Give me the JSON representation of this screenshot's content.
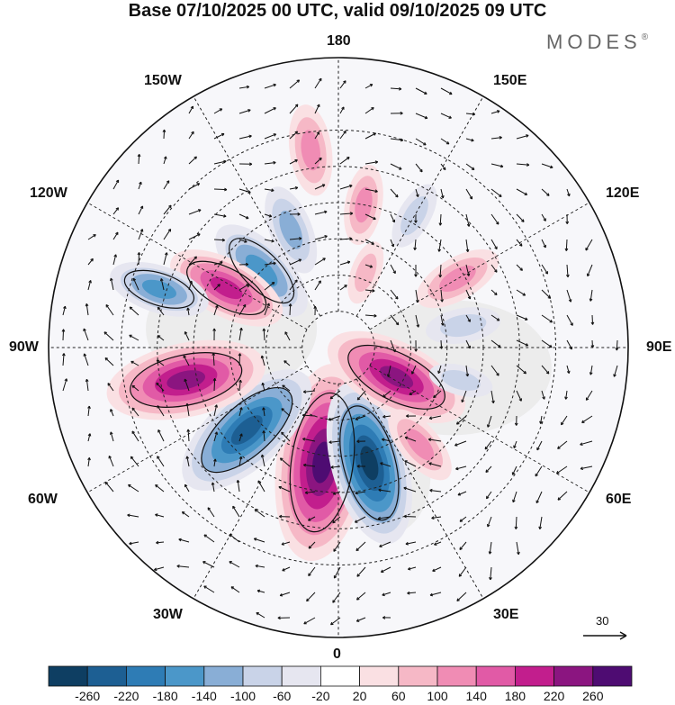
{
  "title": "Base 07/10/2025 00 UTC, valid 09/10/2025 09 UTC",
  "brand": "MODES",
  "brand_mark": "®",
  "longitude_labels": {
    "top": "180",
    "bottom": "0",
    "left": "90W",
    "right": "90E",
    "upper_left_1": "150W",
    "upper_left_2": "120W",
    "lower_left_1": "60W",
    "lower_left_2": "30W",
    "upper_right_1": "150E",
    "upper_right_2": "120E",
    "lower_right_1": "60E",
    "lower_right_2": "30E"
  },
  "wind_reference_vector": "30",
  "colors": {
    "neg_strong": "#0e3e62",
    "neg_mid": "#4b97c9",
    "neg_light": "#c9d3e8",
    "neutral": "#ffffff",
    "pos_light": "#f6cdd3",
    "pos_mid": "#e56aa8",
    "pos_strong": "#4e0c72",
    "land": "#e8e8e8"
  },
  "colorbar": {
    "colors": [
      "#0e3e62",
      "#1d5f93",
      "#2e7cb5",
      "#4b97c9",
      "#89aed6",
      "#c9d3e8",
      "#e6e6f0",
      "#ffffff",
      "#fae0e3",
      "#f6b8c6",
      "#f08cb4",
      "#e15aa6",
      "#c21e8d",
      "#8b1580",
      "#4e0c72"
    ],
    "tick_labels": [
      "-260",
      "-220",
      "-180",
      "-140",
      "-100",
      "-60",
      "-20",
      "20",
      "60",
      "100",
      "140",
      "180",
      "220",
      "260"
    ]
  },
  "anomaly_blobs": [
    {
      "lon": -8,
      "lat": 58,
      "value": 290
    },
    {
      "lon": 15,
      "lat": 57,
      "value": -230
    },
    {
      "lon": -48,
      "lat": 56,
      "value": -220
    },
    {
      "lon": -78,
      "lat": 47,
      "value": 220
    },
    {
      "lon": 63,
      "lat": 72,
      "value": 200
    },
    {
      "lon": -135,
      "lat": 60,
      "value": -140
    },
    {
      "lon": -118,
      "lat": 55,
      "value": 150
    },
    {
      "lon": -158,
      "lat": 55,
      "value": -90
    },
    {
      "lon": -108,
      "lat": 38,
      "value": -110
    },
    {
      "lon": 120,
      "lat": 52,
      "value": 90
    },
    {
      "lon": 100,
      "lat": 55,
      "value": -60
    },
    {
      "lon": 150,
      "lat": 48,
      "value": -50
    },
    {
      "lon": 170,
      "lat": 50,
      "value": 70
    },
    {
      "lon": -172,
      "lat": 35,
      "value": 90
    },
    {
      "lon": 40,
      "lat": 55,
      "value": 80
    },
    {
      "lon": 160,
      "lat": 68,
      "value": 40
    },
    {
      "lon": 75,
      "lat": 55,
      "value": -40
    }
  ]
}
